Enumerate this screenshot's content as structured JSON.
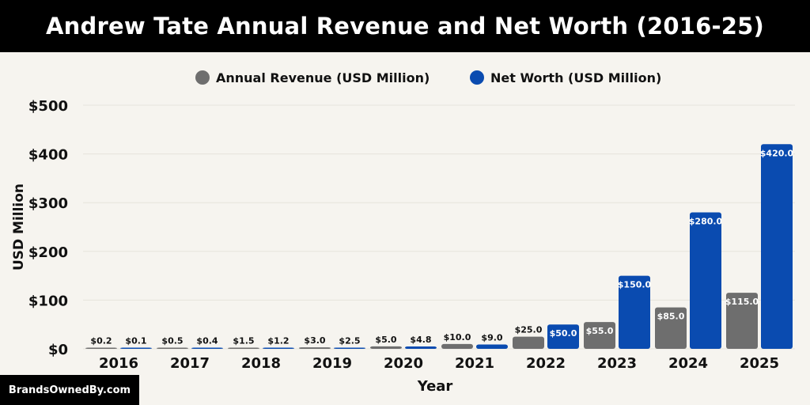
{
  "chart_data": {
    "type": "bar",
    "title": "Andrew Tate Annual Revenue and Net Worth (2016-25)",
    "xlabel": "Year",
    "ylabel": "USD Million",
    "ylim": [
      0,
      500
    ],
    "yticks": [
      0,
      100,
      200,
      300,
      400,
      500
    ],
    "ytick_labels": [
      "$0",
      "$100",
      "$200",
      "$300",
      "$400",
      "$500"
    ],
    "legend_position": "top-center",
    "categories": [
      "2016",
      "2017",
      "2018",
      "2019",
      "2020",
      "2021",
      "2022",
      "2023",
      "2024",
      "2025"
    ],
    "series": [
      {
        "name": "Annual Revenue (USD Million)",
        "color": "#6e6e6e",
        "values": [
          0.2,
          0.5,
          1.5,
          3.0,
          5.0,
          10.0,
          25.0,
          55.0,
          85.0,
          115.0
        ],
        "labels": [
          "$0.2",
          "$0.5",
          "$1.5",
          "$3.0",
          "$5.0",
          "$10.0",
          "$25.0",
          "$55.0",
          "$85.0",
          "$115.0"
        ]
      },
      {
        "name": "Net Worth (USD Million)",
        "color": "#0a4bb0",
        "values": [
          0.1,
          0.4,
          1.2,
          2.5,
          4.8,
          9.0,
          50.0,
          150.0,
          280.0,
          420.0
        ],
        "labels": [
          "$0.1",
          "$0.4",
          "$1.2",
          "$2.5",
          "$4.8",
          "$9.0",
          "$50.0",
          "$150.0",
          "$280.0",
          "$420.0"
        ]
      }
    ]
  },
  "watermark": "BrandsOwnedBy.com"
}
